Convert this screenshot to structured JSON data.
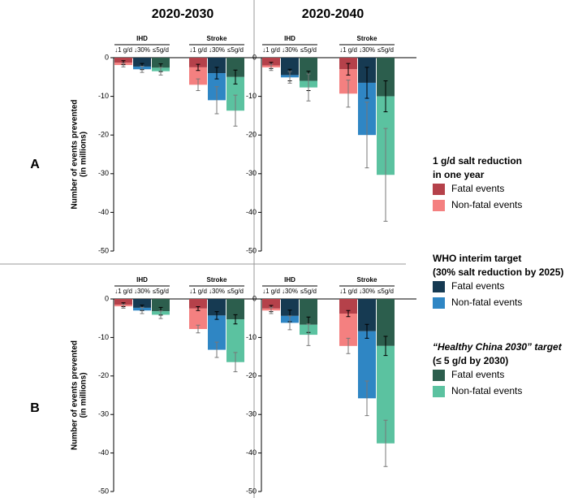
{
  "column_titles": [
    "2020-2030",
    "2020-2040"
  ],
  "row_labels": [
    "A",
    "B"
  ],
  "y_label_lines": [
    "Number of events prevented",
    "(in millions)"
  ],
  "legend": [
    {
      "title_lines": [
        "1 g/d salt reduction",
        "in one year"
      ],
      "entries": [
        {
          "name": "Fatal events",
          "color": "#b5414a"
        },
        {
          "name": "Non-fatal events",
          "color": "#f48080"
        }
      ]
    },
    {
      "title_lines": [
        "WHO interim target",
        "(30% salt reduction by 2025)"
      ],
      "entries": [
        {
          "name": "Fatal events",
          "color": "#163a52"
        },
        {
          "name": "Non-fatal events",
          "color": "#2f86c4"
        }
      ]
    },
    {
      "title_lines": [
        "“Healthy China 2030” target",
        "(≤ 5 g/d by 2030)"
      ],
      "entries": [
        {
          "name": "Fatal events",
          "color": "#2c5e4d"
        },
        {
          "name": "Non-fatal events",
          "color": "#5bc2a0"
        }
      ]
    }
  ],
  "chart_data": [
    {
      "type": "bar",
      "stacked": true,
      "groups": [
        {
          "name": "IHD"
        },
        {
          "name": "Stroke"
        }
      ],
      "categories": [
        "↓1 g/d",
        "↓30%",
        "≤5g/d",
        "↓1 g/d",
        "↓30%",
        "≤5g/d"
      ],
      "ylim": [
        -50,
        0
      ],
      "yticks": [
        0,
        -10,
        -20,
        -30,
        -40,
        -50
      ],
      "series": [
        {
          "colors": [
            "#b5414a",
            "#163a52",
            "#2c5e4d",
            "#b5414a",
            "#163a52",
            "#2c5e4d"
          ],
          "values": [
            -1.3,
            -2.3,
            -2.6,
            -2.5,
            -4,
            -5
          ],
          "errors": [
            0.5,
            0.8,
            1,
            0.8,
            1.5,
            1.8
          ]
        },
        {
          "colors": [
            "#f48080",
            "#2f86c4",
            "#5bc2a0",
            "#f48080",
            "#2f86c4",
            "#5bc2a0"
          ],
          "values": [
            -0.6,
            -0.7,
            -0.9,
            -4.5,
            -7,
            -8.7
          ],
          "errors": [
            0.5,
            0.8,
            1,
            1.5,
            3.5,
            4
          ]
        }
      ]
    },
    {
      "type": "bar",
      "stacked": true,
      "groups": [
        {
          "name": "IHD"
        },
        {
          "name": "Stroke"
        }
      ],
      "categories": [
        "↓1 g/d",
        "↓30%",
        "≤5g/d",
        "↓1 g/d",
        "↓30%",
        "≤5g/d"
      ],
      "ylim": [
        -50,
        0
      ],
      "yticks": [
        0,
        -10,
        -20,
        -30,
        -40,
        -50
      ],
      "series": [
        {
          "colors": [
            "#b5414a",
            "#163a52",
            "#2c5e4d",
            "#b5414a",
            "#163a52",
            "#2c5e4d"
          ],
          "values": [
            -2,
            -4.5,
            -6,
            -3,
            -6.5,
            -10
          ],
          "errors": [
            0.8,
            1.5,
            2.5,
            1.5,
            4,
            4
          ]
        },
        {
          "colors": [
            "#f48080",
            "#2f86c4",
            "#5bc2a0",
            "#f48080",
            "#2f86c4",
            "#5bc2a0"
          ],
          "values": [
            -0.5,
            -0.6,
            -1.7,
            -6.3,
            -13.5,
            -20.3
          ],
          "errors": [
            0.8,
            1.5,
            3.5,
            3.5,
            8.5,
            12
          ]
        }
      ]
    },
    {
      "type": "bar",
      "stacked": true,
      "groups": [
        {
          "name": "IHD"
        },
        {
          "name": "Stroke"
        }
      ],
      "categories": [
        "↓1 g/d",
        "↓30%",
        "≤5g/d",
        "↓1 g/d",
        "↓30%",
        "≤5g/d"
      ],
      "ylim": [
        -50,
        0
      ],
      "yticks": [
        0,
        -10,
        -20,
        -30,
        -40,
        -50
      ],
      "series": [
        {
          "colors": [
            "#b5414a",
            "#163a52",
            "#2c5e4d",
            "#b5414a",
            "#163a52",
            "#2c5e4d"
          ],
          "values": [
            -1.5,
            -2.3,
            -3.2,
            -2.5,
            -4.3,
            -5.3
          ],
          "errors": [
            0.5,
            0.7,
            1,
            0.5,
            1,
            1.2
          ]
        },
        {
          "colors": [
            "#f48080",
            "#2f86c4",
            "#5bc2a0",
            "#f48080",
            "#2f86c4",
            "#5bc2a0"
          ],
          "values": [
            -0.4,
            -0.7,
            -0.9,
            -5.3,
            -8.9,
            -11.1
          ],
          "errors": [
            0.5,
            0.8,
            1,
            1,
            2,
            2.5
          ]
        }
      ]
    },
    {
      "type": "bar",
      "stacked": true,
      "groups": [
        {
          "name": "IHD"
        },
        {
          "name": "Stroke"
        }
      ],
      "categories": [
        "↓1 g/d",
        "↓30%",
        "≤5g/d",
        "↓1 g/d",
        "↓30%",
        "≤5g/d"
      ],
      "ylim": [
        -50,
        0
      ],
      "yticks": [
        0,
        -10,
        -20,
        -30,
        -40,
        -50
      ],
      "series": [
        {
          "colors": [
            "#b5414a",
            "#163a52",
            "#2c5e4d",
            "#b5414a",
            "#163a52",
            "#2c5e4d"
          ],
          "values": [
            -2.5,
            -4.4,
            -6.7,
            -3.8,
            -8.4,
            -12.2
          ],
          "errors": [
            0.8,
            1.5,
            2,
            0.8,
            1.8,
            2.5
          ]
        },
        {
          "colors": [
            "#f48080",
            "#2f86c4",
            "#5bc2a0",
            "#f48080",
            "#2f86c4",
            "#5bc2a0"
          ],
          "values": [
            -0.5,
            -1.8,
            -2.6,
            -8.4,
            -17.4,
            -25.3
          ],
          "errors": [
            0.8,
            1.8,
            2.8,
            2,
            4.5,
            6
          ]
        }
      ]
    }
  ]
}
